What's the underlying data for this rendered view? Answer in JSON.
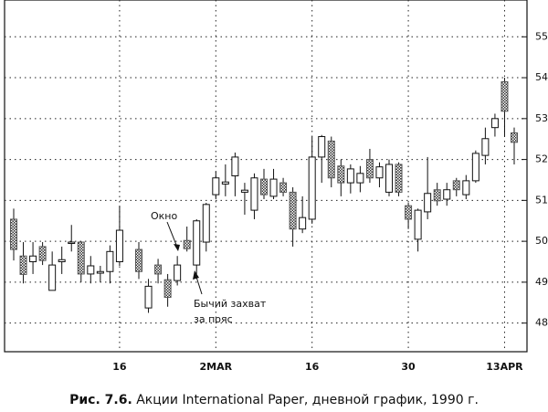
{
  "chart_data": {
    "type": "candlestick",
    "figure_label": "Рис. 7.6.",
    "caption": "Акции International Paper, дневной график, 1990 г.",
    "annotations": [
      "Окно",
      "Бычий захват",
      "за пояс"
    ],
    "categories": [
      null,
      null,
      null,
      null,
      null,
      null,
      null,
      null,
      null,
      null,
      null,
      "16",
      null,
      null,
      null,
      null,
      null,
      null,
      null,
      null,
      null,
      "2MAR",
      null,
      null,
      null,
      null,
      null,
      null,
      null,
      null,
      null,
      "16",
      null,
      null,
      null,
      null,
      null,
      null,
      null,
      null,
      null,
      "30",
      null,
      null,
      null,
      null,
      null,
      null,
      null,
      null,
      null,
      "13APR",
      null
    ],
    "open": [
      50.54,
      49.64,
      49.5,
      49.87,
      48.8,
      49.5,
      49.95,
      49.98,
      49.2,
      49.22,
      49.26,
      49.5,
      null,
      49.8,
      48.37,
      49.42,
      49.06,
      49.04,
      50.02,
      49.42,
      49.98,
      51.14,
      51.4,
      51.6,
      51.2,
      50.76,
      51.52,
      51.1,
      51.43,
      51.2,
      50.3,
      50.54,
      52.06,
      52.45,
      51.84,
      51.43,
      51.43,
      52.0,
      51.55,
      51.2,
      51.88,
      50.87,
      50.05,
      50.72,
      51.26,
      51.03,
      51.48,
      51.14,
      51.48,
      52.1,
      52.78,
      53.9,
      52.65
    ],
    "high": [
      50.8,
      49.98,
      49.98,
      49.98,
      49.75,
      49.87,
      50.4,
      50.0,
      49.64,
      49.4,
      49.9,
      50.87,
      null,
      49.98,
      49.08,
      49.57,
      49.2,
      49.64,
      50.36,
      50.54,
      50.94,
      51.7,
      51.88,
      52.17,
      51.43,
      51.66,
      51.77,
      51.77,
      51.55,
      51.32,
      51.1,
      52.56,
      52.6,
      52.56,
      52.0,
      51.88,
      51.84,
      52.26,
      51.93,
      52.0,
      51.93,
      50.94,
      50.8,
      52.06,
      51.43,
      51.43,
      51.55,
      51.62,
      52.22,
      52.78,
      53.12,
      54.0,
      52.78
    ],
    "low": [
      49.53,
      48.97,
      49.2,
      49.42,
      48.8,
      49.2,
      49.75,
      49.0,
      48.97,
      49.0,
      48.97,
      49.4,
      null,
      49.08,
      48.25,
      48.97,
      48.4,
      48.92,
      49.75,
      49.2,
      49.75,
      51.03,
      51.1,
      51.1,
      50.65,
      50.54,
      51.03,
      51.03,
      51.1,
      49.87,
      50.2,
      50.43,
      51.43,
      51.32,
      51.1,
      51.17,
      51.2,
      51.43,
      51.32,
      51.1,
      51.1,
      50.3,
      49.75,
      50.54,
      50.87,
      50.87,
      51.1,
      51.03,
      51.43,
      51.88,
      52.56,
      52.56,
      51.88
    ],
    "close": [
      49.8,
      49.19,
      49.64,
      49.53,
      49.42,
      49.55,
      49.98,
      49.2,
      49.4,
      49.26,
      49.75,
      50.27,
      null,
      49.26,
      48.9,
      49.2,
      48.63,
      49.42,
      49.82,
      50.5,
      50.9,
      51.55,
      51.45,
      52.06,
      51.25,
      51.55,
      51.14,
      51.52,
      51.2,
      50.3,
      50.58,
      52.06,
      52.56,
      51.55,
      51.43,
      51.77,
      51.66,
      51.55,
      51.82,
      51.88,
      51.2,
      50.54,
      50.76,
      51.17,
      50.99,
      51.26,
      51.26,
      51.48,
      52.15,
      52.51,
      53.0,
      53.18,
      52.42
    ],
    "ylim": [
      47.3,
      55.9
    ],
    "yticks": [
      48,
      49,
      50,
      51,
      52,
      53,
      54,
      55
    ],
    "grid": true,
    "up_color": "#ffffff",
    "down_color": "#555555"
  }
}
